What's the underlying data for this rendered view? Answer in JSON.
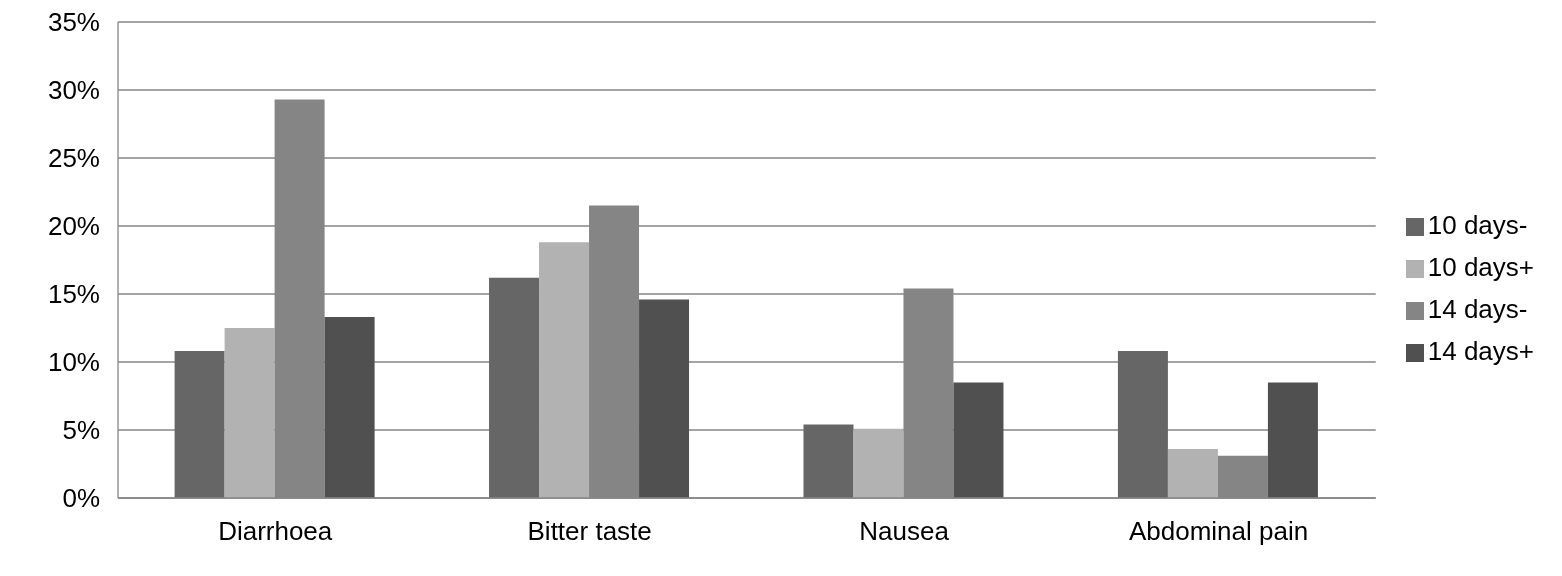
{
  "chart_data": {
    "type": "bar",
    "categories": [
      "Diarrhoea",
      "Bitter taste",
      "Nausea",
      "Abdominal pain"
    ],
    "series": [
      {
        "name": "10 days-",
        "color": "#666666",
        "values": [
          10.8,
          16.2,
          5.4,
          10.8
        ]
      },
      {
        "name": "10 days+",
        "color": "#b2b2b2",
        "values": [
          12.5,
          18.8,
          5.1,
          3.6
        ]
      },
      {
        "name": "14 days-",
        "color": "#858585",
        "values": [
          29.3,
          21.5,
          15.4,
          3.1
        ]
      },
      {
        "name": "14 days+",
        "color": "#505050",
        "values": [
          13.3,
          14.6,
          8.5,
          8.5
        ]
      }
    ],
    "ylim": [
      0,
      35
    ],
    "yticks": [
      {
        "value": 0,
        "label": "0%"
      },
      {
        "value": 5,
        "label": "5%"
      },
      {
        "value": 10,
        "label": "10%"
      },
      {
        "value": 15,
        "label": "15%"
      },
      {
        "value": 20,
        "label": "20%"
      },
      {
        "value": 25,
        "label": "25%"
      },
      {
        "value": 30,
        "label": "30%"
      },
      {
        "value": 35,
        "label": "35%"
      }
    ],
    "grid": "y",
    "legend": "right"
  }
}
